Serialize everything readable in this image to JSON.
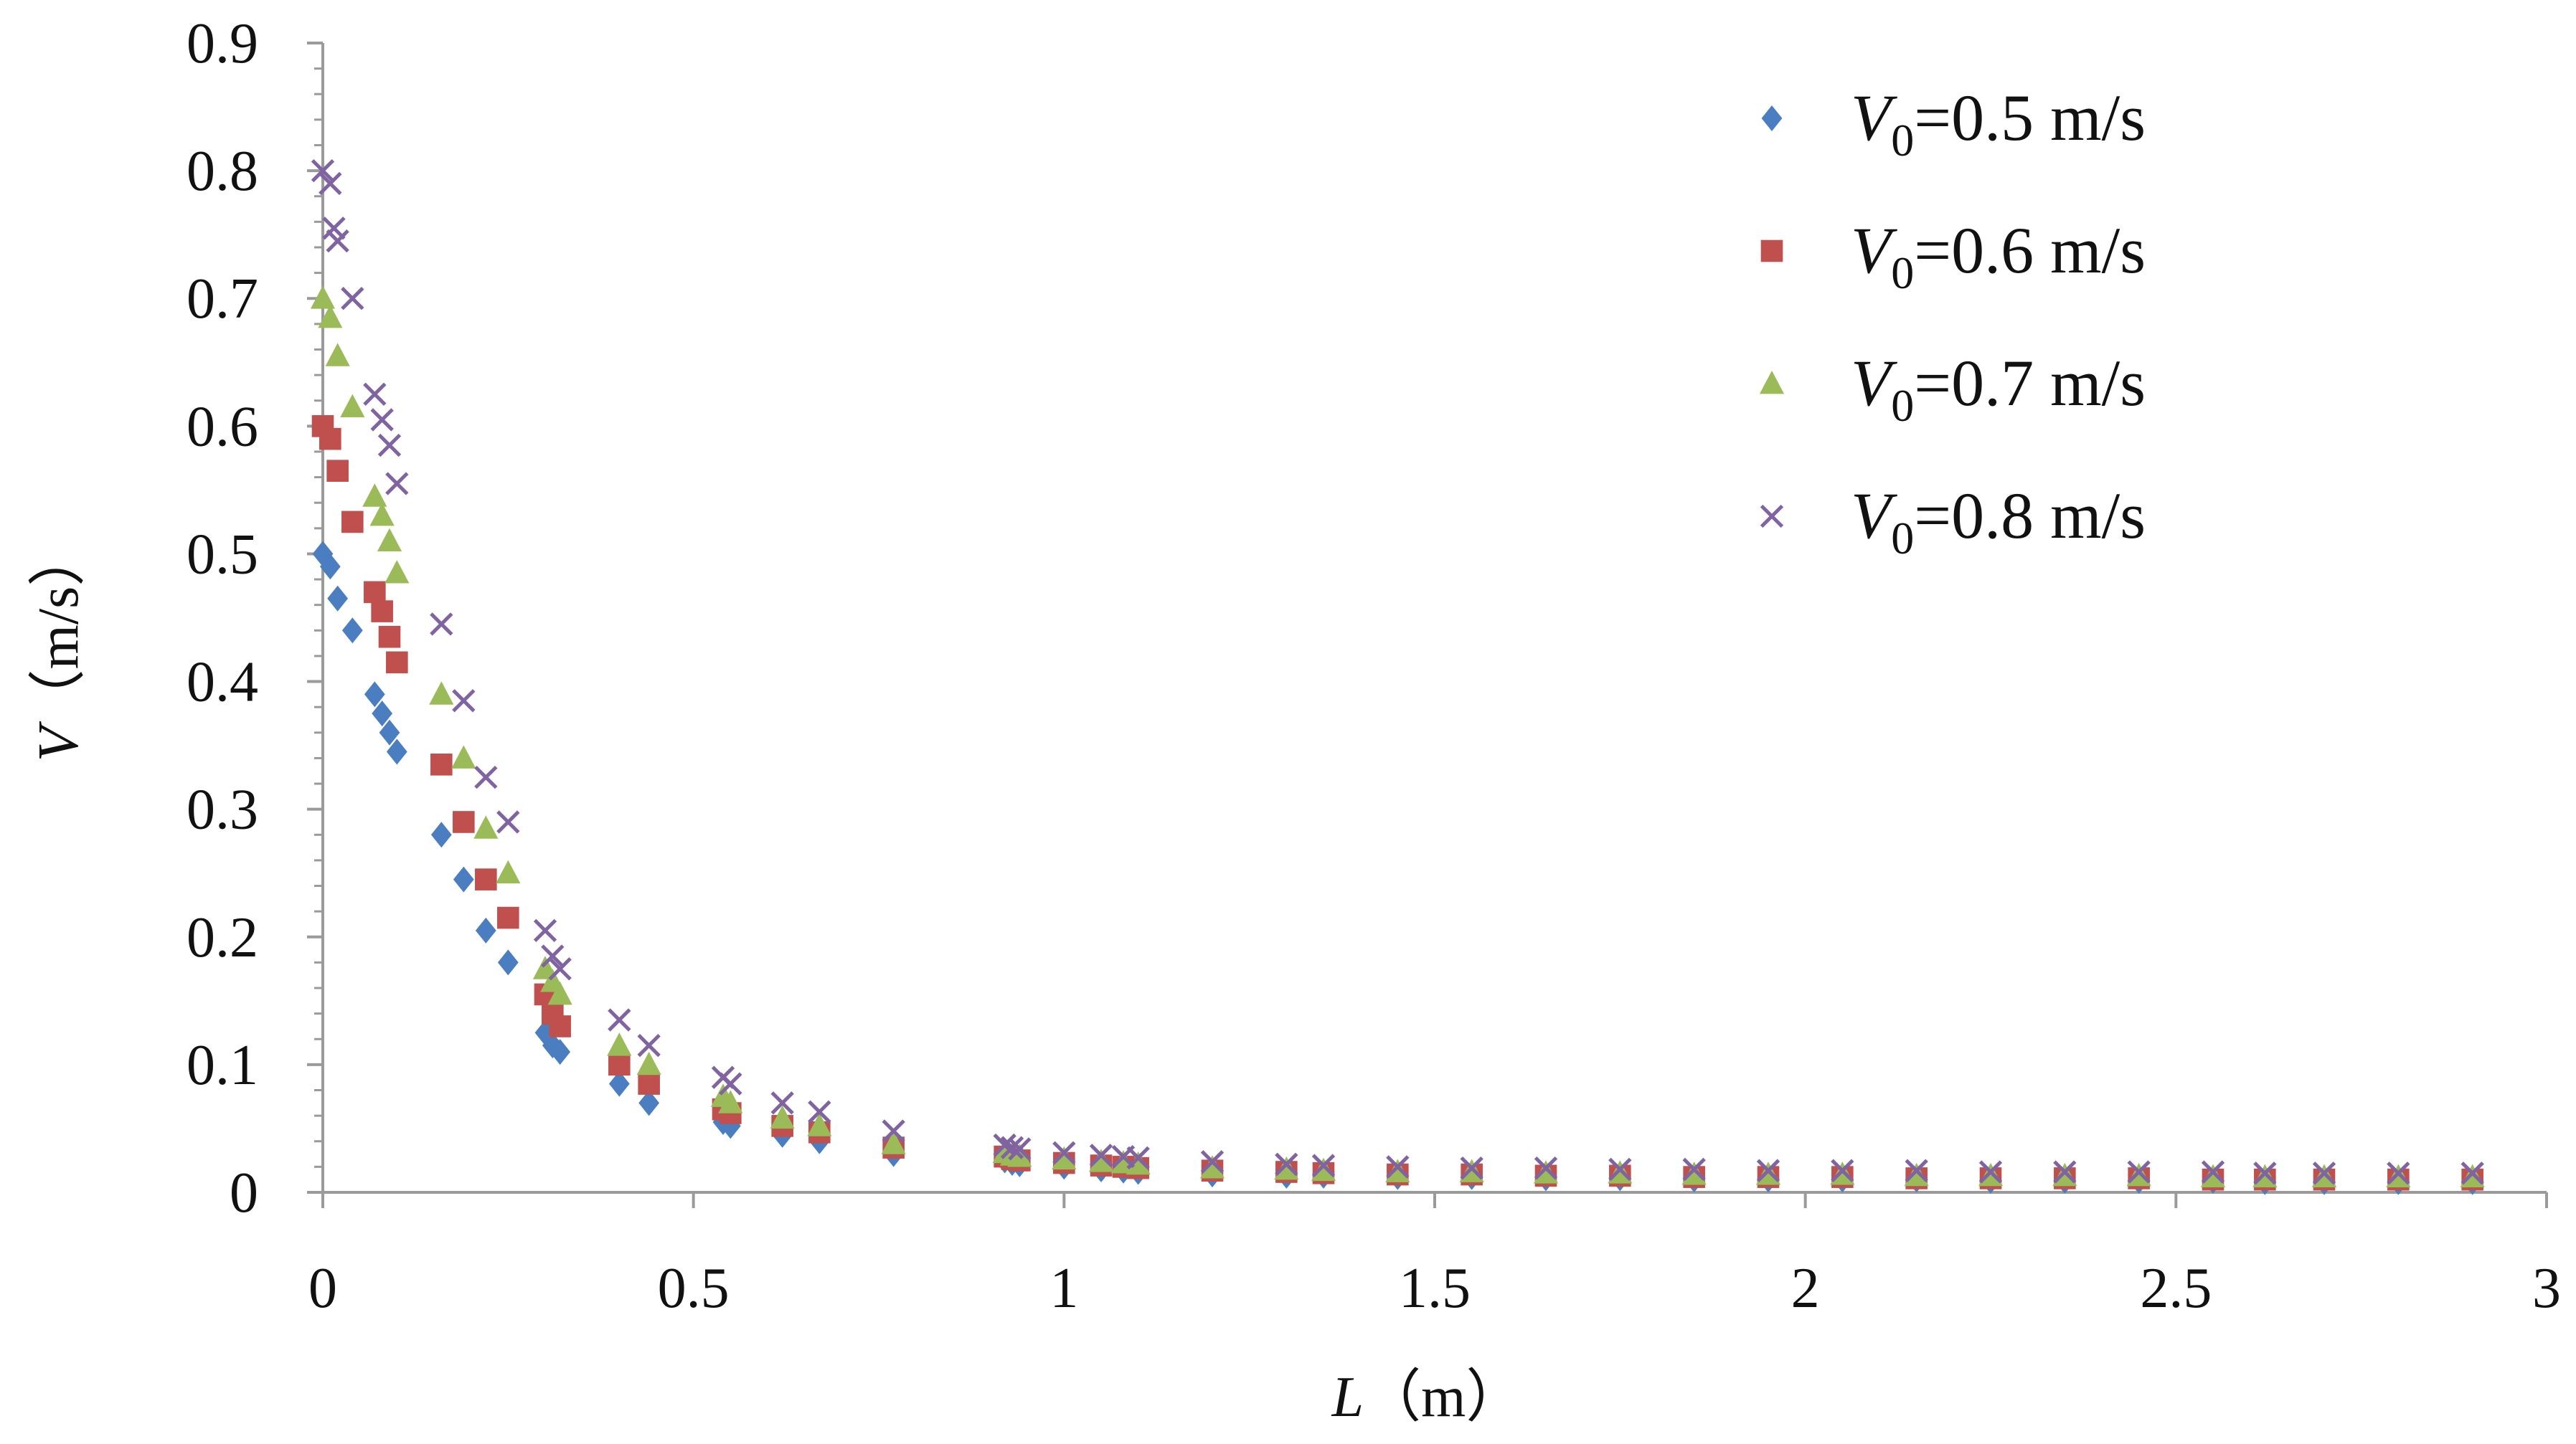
{
  "chart_data": {
    "type": "scatter",
    "title": "",
    "xlabel": {
      "var": "L",
      "unit": "（m）"
    },
    "ylabel": {
      "var": "V",
      "unit": "（m/s）"
    },
    "xlim": [
      0,
      3
    ],
    "ylim": [
      0,
      0.9
    ],
    "xticks": [
      "0",
      "0.5",
      "1",
      "1.5",
      "2",
      "2.5",
      "3"
    ],
    "yticks": [
      "0",
      "0.1",
      "0.2",
      "0.3",
      "0.4",
      "0.5",
      "0.6",
      "0.7",
      "0.8",
      "0.9"
    ],
    "grid": false,
    "legend_position": "top-right",
    "series": [
      {
        "name": "V0=0.5 m/s",
        "legend": {
          "var": "V",
          "sub": "0",
          "rest": "=0.5 m/s"
        },
        "marker": "diamond",
        "color": "#4A7EC1",
        "x": [
          0.0,
          0.01,
          0.02,
          0.04,
          0.07,
          0.08,
          0.09,
          0.1,
          0.16,
          0.19,
          0.22,
          0.25,
          0.3,
          0.31,
          0.32,
          0.4,
          0.44,
          0.54,
          0.55,
          0.62,
          0.67,
          0.77,
          0.92,
          0.93,
          0.94,
          1.0,
          1.05,
          1.08,
          1.1,
          1.2,
          1.3,
          1.35,
          1.45,
          1.55,
          1.65,
          1.75,
          1.85,
          1.95,
          2.05,
          2.15,
          2.25,
          2.35,
          2.45,
          2.55,
          2.62,
          2.7,
          2.8,
          2.9
        ],
        "y": [
          0.5,
          0.49,
          0.465,
          0.44,
          0.39,
          0.375,
          0.36,
          0.345,
          0.28,
          0.245,
          0.205,
          0.18,
          0.125,
          0.115,
          0.11,
          0.085,
          0.07,
          0.055,
          0.052,
          0.045,
          0.04,
          0.03,
          0.025,
          0.023,
          0.022,
          0.02,
          0.018,
          0.017,
          0.016,
          0.014,
          0.013,
          0.013,
          0.012,
          0.012,
          0.011,
          0.011,
          0.01,
          0.01,
          0.01,
          0.01,
          0.009,
          0.009,
          0.009,
          0.009,
          0.008,
          0.008,
          0.008,
          0.008
        ]
      },
      {
        "name": "V0=0.6 m/s",
        "legend": {
          "var": "V",
          "sub": "0",
          "rest": "=0.6 m/s"
        },
        "marker": "square",
        "color": "#C0504D",
        "x": [
          0.0,
          0.01,
          0.02,
          0.04,
          0.07,
          0.08,
          0.09,
          0.1,
          0.16,
          0.19,
          0.22,
          0.25,
          0.3,
          0.31,
          0.32,
          0.4,
          0.44,
          0.54,
          0.55,
          0.62,
          0.67,
          0.77,
          0.92,
          0.93,
          0.94,
          1.0,
          1.05,
          1.08,
          1.1,
          1.2,
          1.3,
          1.35,
          1.45,
          1.55,
          1.65,
          1.75,
          1.85,
          1.95,
          2.05,
          2.15,
          2.25,
          2.35,
          2.45,
          2.55,
          2.62,
          2.7,
          2.8,
          2.9
        ],
        "y": [
          0.6,
          0.59,
          0.565,
          0.525,
          0.47,
          0.455,
          0.435,
          0.415,
          0.335,
          0.29,
          0.245,
          0.215,
          0.155,
          0.14,
          0.13,
          0.1,
          0.085,
          0.065,
          0.062,
          0.052,
          0.047,
          0.035,
          0.028,
          0.026,
          0.025,
          0.023,
          0.021,
          0.02,
          0.019,
          0.017,
          0.016,
          0.015,
          0.014,
          0.014,
          0.013,
          0.013,
          0.012,
          0.012,
          0.012,
          0.011,
          0.011,
          0.011,
          0.011,
          0.01,
          0.01,
          0.01,
          0.01,
          0.01
        ]
      },
      {
        "name": "V0=0.7 m/s",
        "legend": {
          "var": "V",
          "sub": "0",
          "rest": "=0.7 m/s"
        },
        "marker": "triangle",
        "color": "#9BBB59",
        "x": [
          0.0,
          0.01,
          0.02,
          0.04,
          0.07,
          0.08,
          0.09,
          0.1,
          0.16,
          0.19,
          0.22,
          0.25,
          0.3,
          0.31,
          0.32,
          0.4,
          0.44,
          0.54,
          0.55,
          0.62,
          0.67,
          0.77,
          0.92,
          0.93,
          0.94,
          1.0,
          1.05,
          1.08,
          1.1,
          1.2,
          1.3,
          1.35,
          1.45,
          1.55,
          1.65,
          1.75,
          1.85,
          1.95,
          2.05,
          2.15,
          2.25,
          2.35,
          2.45,
          2.55,
          2.62,
          2.7,
          2.8,
          2.9
        ],
        "y": [
          0.7,
          0.685,
          0.655,
          0.615,
          0.545,
          0.53,
          0.51,
          0.485,
          0.39,
          0.34,
          0.285,
          0.25,
          0.175,
          0.165,
          0.155,
          0.115,
          0.1,
          0.075,
          0.07,
          0.058,
          0.052,
          0.038,
          0.031,
          0.029,
          0.028,
          0.026,
          0.024,
          0.023,
          0.022,
          0.019,
          0.018,
          0.017,
          0.016,
          0.016,
          0.015,
          0.015,
          0.014,
          0.014,
          0.014,
          0.013,
          0.013,
          0.013,
          0.013,
          0.012,
          0.012,
          0.012,
          0.012,
          0.012
        ]
      },
      {
        "name": "V0=0.8 m/s",
        "legend": {
          "var": "V",
          "sub": "0",
          "rest": "=0.8 m/s"
        },
        "marker": "x",
        "color": "#8064A2",
        "x": [
          0.0,
          0.01,
          0.015,
          0.02,
          0.04,
          0.07,
          0.08,
          0.09,
          0.1,
          0.16,
          0.19,
          0.22,
          0.25,
          0.3,
          0.31,
          0.32,
          0.4,
          0.44,
          0.54,
          0.55,
          0.62,
          0.67,
          0.77,
          0.92,
          0.93,
          0.94,
          1.0,
          1.05,
          1.08,
          1.1,
          1.2,
          1.3,
          1.35,
          1.45,
          1.55,
          1.65,
          1.75,
          1.85,
          1.95,
          2.05,
          2.15,
          2.25,
          2.35,
          2.45,
          2.55,
          2.62,
          2.7,
          2.8,
          2.9
        ],
        "y": [
          0.8,
          0.79,
          0.755,
          0.745,
          0.7,
          0.625,
          0.605,
          0.585,
          0.555,
          0.445,
          0.385,
          0.325,
          0.29,
          0.205,
          0.185,
          0.175,
          0.135,
          0.115,
          0.09,
          0.085,
          0.07,
          0.063,
          0.048,
          0.037,
          0.035,
          0.034,
          0.031,
          0.029,
          0.028,
          0.027,
          0.024,
          0.022,
          0.021,
          0.02,
          0.019,
          0.019,
          0.018,
          0.018,
          0.017,
          0.017,
          0.017,
          0.016,
          0.016,
          0.016,
          0.016,
          0.015,
          0.015,
          0.015,
          0.015
        ]
      }
    ]
  }
}
